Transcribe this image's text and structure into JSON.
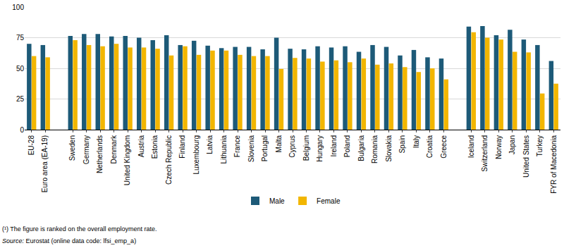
{
  "chart_data": {
    "type": "bar",
    "categories": [
      "EU-28",
      "Euro area (EA-19)",
      null,
      "Sweden",
      "Germany",
      "Netherlands",
      "Denmark",
      "United Kingdom",
      "Austria",
      "Estonia",
      "Czech Republic",
      "Finland",
      "Luxembourg",
      "Latvia",
      "Lithuania",
      "France",
      "Slovenia",
      "Portugal",
      "Malta",
      "Cyprus",
      "Belgium",
      "Hungary",
      "Ireland",
      "Poland",
      "Bulgaria",
      "Romania",
      "Slovakia",
      "Spain",
      "Italy",
      "Croatia",
      "Greece",
      null,
      "Iceland",
      "Switzerland",
      "Norway",
      "Japan",
      "United States",
      "Turkey",
      "FYR of Macedonia"
    ],
    "series": [
      {
        "name": "Male",
        "color": "#1d5a78",
        "values": [
          70,
          69,
          null,
          76.5,
          78,
          78,
          76,
          76.5,
          75,
          73,
          77,
          69,
          72.5,
          68.5,
          66.5,
          67.5,
          67.5,
          65.5,
          75,
          66,
          65.5,
          68,
          67,
          68,
          63.5,
          69,
          67.5,
          60.5,
          65,
          59,
          58,
          null,
          84,
          84.5,
          77,
          81.5,
          73.5,
          69,
          56
        ]
      },
      {
        "name": "Female",
        "color": "#f2b600",
        "values": [
          60,
          59,
          null,
          73,
          69,
          68,
          70,
          67,
          67,
          66,
          60.5,
          68,
          61,
          64.5,
          64.5,
          61,
          60,
          60,
          49.5,
          58.5,
          58,
          55.5,
          56.5,
          55,
          58,
          53,
          54,
          51,
          47,
          50,
          41,
          null,
          79.5,
          75,
          73.5,
          63.5,
          63,
          29.5,
          37.5
        ]
      }
    ],
    "ylim": [
      0,
      100
    ],
    "yticks": [
      0,
      25,
      50,
      75,
      100
    ],
    "grid": true,
    "legend": "bottom",
    "footnote": "(¹) The figure is ranked on the overall employment rate.",
    "source": "Source: Eurostat (online data code: lfsi_emp_a)"
  }
}
